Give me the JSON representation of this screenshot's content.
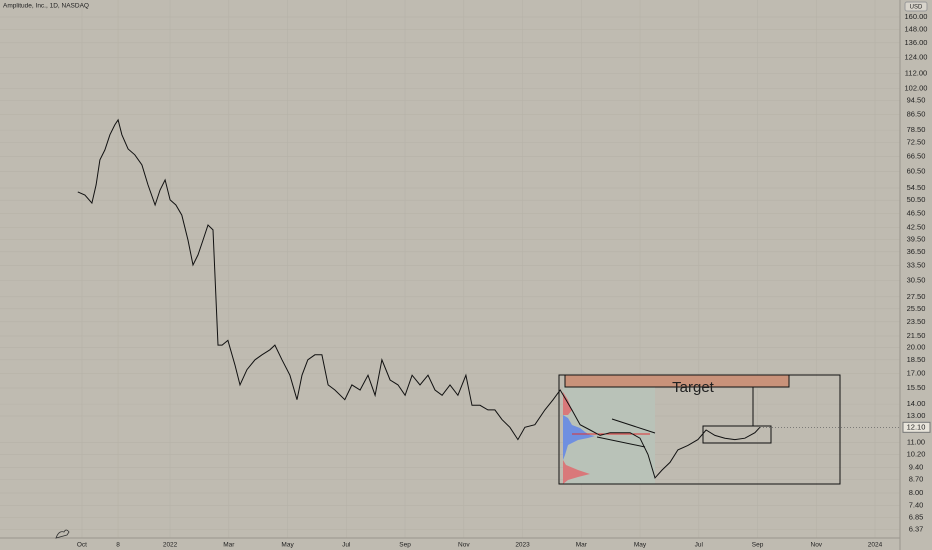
{
  "chart_data": {
    "type": "line",
    "title": "Amplitude, Inc., 1D, NASDAQ",
    "currency": "USD",
    "annotation": "Target",
    "log_scale": true,
    "grid": true,
    "last_price": {
      "value": 12.1,
      "label": "12.10"
    },
    "xlim": [
      -2.79,
      27.85
    ],
    "xticks": [
      {
        "value": 0,
        "label": "Oct"
      },
      {
        "value": 1.23,
        "label": "8"
      },
      {
        "value": 3,
        "label": "2022"
      },
      {
        "value": 5,
        "label": "Mar"
      },
      {
        "value": 7,
        "label": "May"
      },
      {
        "value": 9,
        "label": "Jul"
      },
      {
        "value": 11,
        "label": "Sep"
      },
      {
        "value": 13,
        "label": "Nov"
      },
      {
        "value": 15,
        "label": "2023"
      },
      {
        "value": 17,
        "label": "Mar"
      },
      {
        "value": 19,
        "label": "May"
      },
      {
        "value": 21,
        "label": "Jul"
      },
      {
        "value": 23,
        "label": "Sep"
      },
      {
        "value": 25,
        "label": "Nov"
      },
      {
        "value": 27,
        "label": "2024"
      }
    ],
    "ylim": [
      6.03,
      178
    ],
    "yticks": [
      {
        "value": 160,
        "label": "160.00"
      },
      {
        "value": 148,
        "label": "148.00"
      },
      {
        "value": 136,
        "label": "136.00"
      },
      {
        "value": 124,
        "label": "124.00"
      },
      {
        "value": 112,
        "label": "112.00"
      },
      {
        "value": 102,
        "label": "102.00"
      },
      {
        "value": 94.5,
        "label": "94.50"
      },
      {
        "value": 86.5,
        "label": "86.50"
      },
      {
        "value": 78.5,
        "label": "78.50"
      },
      {
        "value": 72.5,
        "label": "72.50"
      },
      {
        "value": 66.5,
        "label": "66.50"
      },
      {
        "value": 60.5,
        "label": "60.50"
      },
      {
        "value": 54.5,
        "label": "54.50"
      },
      {
        "value": 50.5,
        "label": "50.50"
      },
      {
        "value": 46.5,
        "label": "46.50"
      },
      {
        "value": 42.5,
        "label": "42.50"
      },
      {
        "value": 39.5,
        "label": "39.50"
      },
      {
        "value": 36.5,
        "label": "36.50"
      },
      {
        "value": 33.5,
        "label": "33.50"
      },
      {
        "value": 30.5,
        "label": "30.50"
      },
      {
        "value": 27.5,
        "label": "27.50"
      },
      {
        "value": 25.5,
        "label": "25.50"
      },
      {
        "value": 23.5,
        "label": "23.50"
      },
      {
        "value": 21.5,
        "label": "21.50"
      },
      {
        "value": 20,
        "label": "20.00"
      },
      {
        "value": 18.5,
        "label": "18.50"
      },
      {
        "value": 17,
        "label": "17.00"
      },
      {
        "value": 15.5,
        "label": "15.50"
      },
      {
        "value": 14,
        "label": "14.00"
      },
      {
        "value": 13,
        "label": "13.00"
      },
      {
        "value": 11,
        "label": "11.00"
      },
      {
        "value": 10.2,
        "label": "10.20"
      },
      {
        "value": 9.4,
        "label": "9.40"
      },
      {
        "value": 8.7,
        "label": "8.70"
      },
      {
        "value": 8,
        "label": "8.00"
      },
      {
        "value": 7.4,
        "label": "7.40"
      },
      {
        "value": 6.85,
        "label": "6.85"
      },
      {
        "value": 6.37,
        "label": "6.37"
      }
    ],
    "series": [
      {
        "color": "#111111",
        "x": [
          -0.14,
          0.1,
          0.34,
          0.48,
          0.61,
          0.78,
          0.95,
          1.12,
          1.23,
          1.36,
          1.57,
          1.8,
          2.04,
          2.25,
          2.49,
          2.66,
          2.83,
          3.0,
          3.2,
          3.4,
          3.61,
          3.78,
          3.95,
          4.12,
          4.29,
          4.46,
          4.63,
          4.77,
          4.97,
          5.21,
          5.38,
          5.62,
          5.89,
          6.13,
          6.4,
          6.57,
          6.81,
          7.08,
          7.32,
          7.49,
          7.69,
          7.93,
          8.17,
          8.38,
          8.61,
          8.95,
          9.19,
          9.47,
          9.74,
          9.98,
          10.21,
          10.49,
          10.76,
          11.0,
          11.24,
          11.51,
          11.78,
          12.02,
          12.26,
          12.53,
          12.8,
          13.07,
          13.28,
          13.55,
          13.82,
          14.06,
          14.3,
          14.57,
          14.84,
          15.08,
          15.42,
          15.76,
          16.04,
          16.28,
          16.48,
          16.68,
          16.96,
          17.3,
          17.64,
          17.98,
          18.32,
          18.66,
          19.0,
          19.27,
          19.51,
          19.75,
          20.02,
          20.29,
          20.63,
          20.97,
          21.25,
          21.55,
          21.89,
          22.23,
          22.57,
          22.91,
          23.08
        ],
        "values": [
          53.2,
          52.2,
          49.6,
          55.6,
          65.1,
          69.3,
          76.2,
          81.1,
          83.7,
          76.2,
          69.7,
          67.2,
          63.1,
          55.6,
          49.0,
          53.9,
          57.4,
          50.6,
          49.0,
          46.0,
          39.3,
          33.6,
          35.8,
          39.3,
          43.2,
          41.9,
          20.3,
          20.3,
          20.9,
          17.9,
          15.8,
          17.4,
          18.5,
          19.1,
          19.7,
          20.3,
          18.5,
          16.8,
          14.4,
          16.8,
          18.5,
          19.1,
          19.1,
          15.8,
          15.3,
          14.4,
          15.8,
          15.3,
          16.8,
          14.8,
          18.5,
          16.3,
          15.8,
          14.8,
          16.8,
          15.8,
          16.8,
          15.3,
          14.8,
          15.8,
          14.8,
          16.8,
          13.9,
          13.9,
          13.5,
          13.5,
          12.7,
          12.1,
          11.2,
          12.1,
          12.3,
          13.5,
          14.4,
          15.3,
          14.4,
          13.5,
          12.3,
          11.9,
          11.5,
          11.7,
          11.7,
          11.7,
          11.3,
          10.2,
          8.8,
          9.25,
          9.7,
          10.5,
          10.8,
          11.2,
          11.9,
          11.5,
          11.3,
          11.2,
          11.3,
          11.7,
          12.1
        ]
      }
    ]
  }
}
